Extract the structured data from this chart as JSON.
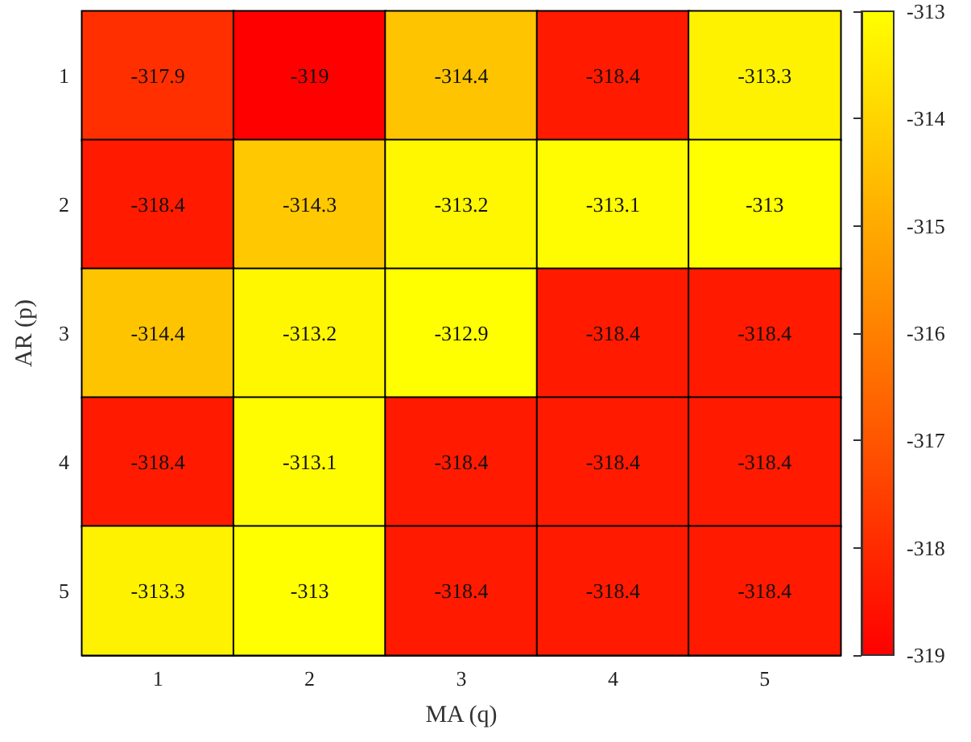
{
  "chart_data": {
    "type": "heatmap",
    "xlabel": "MA (q)",
    "ylabel": "AR (p)",
    "categories": [
      "1",
      "2",
      "3",
      "4",
      "5"
    ],
    "y_categories": [
      "1",
      "2",
      "3",
      "4",
      "5"
    ],
    "cells": [
      [
        -317.9,
        -319,
        -314.4,
        -318.4,
        -313.3
      ],
      [
        -318.4,
        -314.3,
        -313.2,
        -313.1,
        -313
      ],
      [
        -314.4,
        -313.2,
        -312.9,
        -318.4,
        -318.4
      ],
      [
        -318.4,
        -313.1,
        -318.4,
        -318.4,
        -318.4
      ],
      [
        -313.3,
        -313,
        -318.4,
        -318.4,
        -318.4
      ]
    ],
    "data_labels": true,
    "clim": [
      -319,
      -313
    ],
    "cticks": [
      -319,
      -318,
      -317,
      -316,
      -315,
      -314,
      -313
    ]
  }
}
